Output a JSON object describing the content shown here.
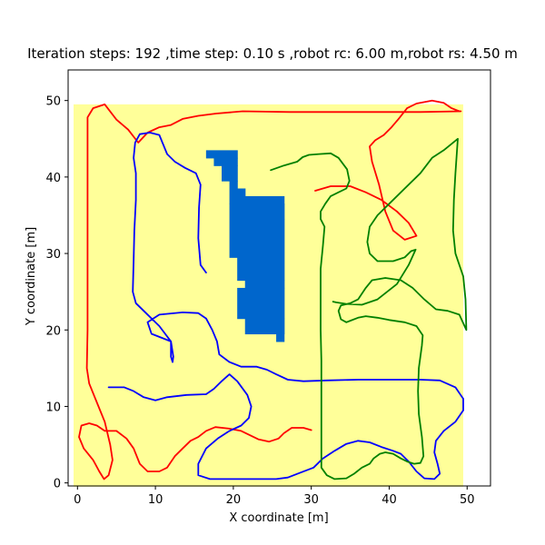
{
  "chart_data": {
    "type": "line",
    "title": "Iteration steps: 192 ,time step: 0.10 s ,robot rc: 6.00 m,robot rs: 4.50 m",
    "xlabel": "X coordinate [m]",
    "ylabel": "Y coordinate [m]",
    "xlim": [
      -1.2,
      53.0
    ],
    "ylim": [
      -0.4,
      54.0
    ],
    "xticks": [
      0,
      10,
      20,
      30,
      40,
      50
    ],
    "yticks": [
      0,
      10,
      20,
      30,
      40,
      50
    ],
    "grid": false,
    "colors": {
      "background": "#FFFF99",
      "obstacle": "#0066CC",
      "red": "#FF0000",
      "blue": "#0000FF",
      "green": "#008000"
    },
    "region": {
      "x": [
        -0.5,
        49.5
      ],
      "y": [
        -0.5,
        49.5
      ]
    },
    "obstacle_cells": [
      [
        16.5,
        42.5,
        4,
        1
      ],
      [
        17.5,
        41.5,
        3,
        1
      ],
      [
        18.5,
        39.5,
        2,
        2
      ],
      [
        19.5,
        36.5,
        1,
        3
      ],
      [
        19.5,
        29.5,
        1,
        7
      ],
      [
        20.5,
        37.5,
        1,
        1
      ],
      [
        20.5,
        36.5,
        6,
        1
      ],
      [
        20.5,
        26.5,
        6,
        10
      ],
      [
        21.5,
        25.5,
        5,
        1
      ],
      [
        20.5,
        21.5,
        6,
        4
      ],
      [
        21.5,
        19.5,
        5,
        2
      ],
      [
        25.5,
        34.5,
        1,
        2
      ],
      [
        25.5,
        18.5,
        1,
        16
      ]
    ],
    "series": [
      {
        "color": "red",
        "points": [
          [
            49.2,
            48.6
          ],
          [
            44,
            48.5
          ],
          [
            40.5,
            48.5
          ],
          [
            33.8,
            48.5
          ],
          [
            27.2,
            48.5
          ],
          [
            21.2,
            48.6
          ],
          [
            17.8,
            48.3
          ],
          [
            15.5,
            48
          ],
          [
            13.5,
            47.6
          ],
          [
            12,
            46.8
          ],
          [
            10.5,
            46.5
          ],
          [
            9,
            45.8
          ],
          [
            7.8,
            44.5
          ],
          [
            6.5,
            46.2
          ],
          [
            5,
            47.5
          ],
          [
            3.5,
            49.5
          ],
          [
            2,
            49
          ],
          [
            1.3,
            47.8
          ],
          [
            1.3,
            40
          ],
          [
            1.3,
            30
          ],
          [
            1.3,
            20
          ],
          [
            1.2,
            15
          ],
          [
            1.5,
            13
          ],
          [
            2.3,
            11
          ],
          [
            3.5,
            8
          ],
          [
            4.2,
            5
          ],
          [
            4.5,
            3
          ],
          [
            4,
            1
          ],
          [
            3.4,
            0.5
          ],
          [
            2.8,
            1.5
          ],
          [
            2,
            3
          ],
          [
            0.8,
            4.5
          ],
          [
            0.2,
            6
          ],
          [
            0.5,
            7.5
          ],
          [
            1.5,
            7.8
          ],
          [
            2.5,
            7.5
          ],
          [
            3.5,
            6.8
          ],
          [
            5,
            6.8
          ],
          [
            6.3,
            5.8
          ],
          [
            7.2,
            4.5
          ],
          [
            8,
            2.5
          ],
          [
            9,
            1.5
          ],
          [
            10.5,
            1.5
          ],
          [
            11.5,
            2
          ],
          [
            12.5,
            3.5
          ],
          [
            13.5,
            4.5
          ],
          [
            14.5,
            5.5
          ],
          [
            15.5,
            6
          ],
          [
            16.5,
            6.8
          ],
          [
            17.7,
            7.3
          ],
          [
            19.5,
            7.1
          ],
          [
            21,
            6.8
          ],
          [
            22,
            6.3
          ],
          [
            23.2,
            5.7
          ],
          [
            24.6,
            5.4
          ],
          [
            25.8,
            5.8
          ],
          [
            26.5,
            6.5
          ],
          [
            27.5,
            7.2
          ],
          [
            29,
            7.2
          ],
          [
            30,
            6.9
          ]
        ]
      },
      {
        "color": "red",
        "points": [
          [
            30.5,
            38.2
          ],
          [
            32.5,
            38.8
          ],
          [
            35,
            38.8
          ],
          [
            37,
            38
          ],
          [
            39,
            37
          ],
          [
            41,
            35.5
          ],
          [
            42.5,
            34
          ],
          [
            43.5,
            32.3
          ],
          [
            42,
            31.8
          ],
          [
            40.5,
            33
          ],
          [
            39.5,
            35.5
          ],
          [
            38.7,
            39
          ],
          [
            37.8,
            42
          ],
          [
            37.5,
            44
          ],
          [
            38.2,
            44.8
          ],
          [
            39.3,
            45.5
          ],
          [
            40.3,
            46.5
          ],
          [
            41.2,
            47.6
          ],
          [
            42.3,
            49
          ],
          [
            43.5,
            49.6
          ],
          [
            45.5,
            50
          ],
          [
            47,
            49.7
          ],
          [
            48,
            49
          ],
          [
            49,
            48.6
          ]
        ]
      },
      {
        "color": "blue",
        "points": [
          [
            16.5,
            27.5
          ],
          [
            15.8,
            28.5
          ],
          [
            15.5,
            32
          ],
          [
            15.6,
            36
          ],
          [
            15.8,
            39
          ],
          [
            15.2,
            40.5
          ],
          [
            13.8,
            41.2
          ],
          [
            12.5,
            42
          ],
          [
            11.5,
            43
          ],
          [
            10.5,
            45.5
          ],
          [
            9.3,
            45.8
          ],
          [
            8,
            45.6
          ],
          [
            7.4,
            44.5
          ],
          [
            7.2,
            42.5
          ],
          [
            7.5,
            40.5
          ],
          [
            7.5,
            37
          ],
          [
            7.3,
            33
          ],
          [
            7.2,
            29
          ],
          [
            7.1,
            25
          ],
          [
            7.5,
            23.5
          ],
          [
            8.5,
            22.5
          ],
          [
            10.5,
            20.5
          ],
          [
            12,
            18.5
          ],
          [
            12,
            16.5
          ],
          [
            12.2,
            15.8
          ],
          [
            12.3,
            16.5
          ],
          [
            12,
            18.5
          ],
          [
            9.5,
            19.5
          ],
          [
            9,
            21
          ],
          [
            10.5,
            22
          ],
          [
            13.5,
            22.3
          ],
          [
            15.5,
            22.2
          ],
          [
            16.5,
            21.5
          ],
          [
            17.3,
            20
          ],
          [
            17.9,
            18.5
          ],
          [
            18.2,
            16.8
          ],
          [
            19.5,
            15.8
          ],
          [
            21,
            15.2
          ],
          [
            23,
            15.2
          ],
          [
            24.3,
            14.8
          ],
          [
            25.5,
            14.2
          ],
          [
            27,
            13.5
          ],
          [
            29,
            13.3
          ],
          [
            32,
            13.4
          ],
          [
            36,
            13.5
          ],
          [
            40,
            13.5
          ],
          [
            44,
            13.5
          ],
          [
            46.5,
            13.4
          ],
          [
            48.5,
            12.5
          ],
          [
            49.5,
            11
          ],
          [
            49.5,
            9.5
          ],
          [
            48.5,
            8
          ],
          [
            47,
            6.8
          ],
          [
            46,
            5.5
          ],
          [
            45.8,
            4
          ],
          [
            46.2,
            2.5
          ],
          [
            46.5,
            1.2
          ],
          [
            45.8,
            0.5
          ],
          [
            44.5,
            0.6
          ],
          [
            43.5,
            1.5
          ],
          [
            42.5,
            2.8
          ],
          [
            41.5,
            3.8
          ],
          [
            40.5,
            4.2
          ],
          [
            39,
            4.7
          ],
          [
            37.5,
            5.3
          ],
          [
            36,
            5.5
          ],
          [
            34.5,
            5.1
          ],
          [
            33,
            4.2
          ],
          [
            31.5,
            3.2
          ],
          [
            30.3,
            2
          ],
          [
            28.5,
            1.3
          ],
          [
            27,
            0.7
          ],
          [
            25.5,
            0.5
          ],
          [
            23,
            0.5
          ],
          [
            20,
            0.5
          ],
          [
            17,
            0.5
          ],
          [
            15.5,
            1
          ],
          [
            15.5,
            2.5
          ],
          [
            16.5,
            4.5
          ],
          [
            18,
            5.8
          ],
          [
            19.5,
            6.8
          ],
          [
            21,
            7.5
          ],
          [
            22,
            8.5
          ],
          [
            22.3,
            10
          ],
          [
            21.8,
            11.5
          ],
          [
            20.5,
            13.3
          ],
          [
            19.5,
            14.2
          ],
          [
            18.5,
            13.3
          ],
          [
            17.5,
            12.3
          ],
          [
            16.5,
            11.6
          ],
          [
            14,
            11.5
          ],
          [
            11.5,
            11.2
          ],
          [
            10,
            10.8
          ],
          [
            8.5,
            11.2
          ],
          [
            7.2,
            12
          ],
          [
            6,
            12.5
          ],
          [
            4,
            12.5
          ]
        ]
      },
      {
        "color": "green",
        "points": [
          [
            24.8,
            40.9
          ],
          [
            26.5,
            41.5
          ],
          [
            27.5,
            41.8
          ],
          [
            28.2,
            42
          ],
          [
            28.9,
            42.6
          ],
          [
            29.7,
            42.9
          ],
          [
            31,
            43
          ],
          [
            32.5,
            43.1
          ],
          [
            33.5,
            42.5
          ],
          [
            34.6,
            41
          ],
          [
            34.9,
            39.5
          ],
          [
            34.5,
            38.5
          ],
          [
            33.5,
            38
          ],
          [
            32.5,
            37.5
          ],
          [
            31.8,
            36.5
          ],
          [
            31.2,
            35.5
          ],
          [
            31.2,
            34.5
          ],
          [
            31.7,
            33.5
          ],
          [
            31.5,
            31
          ],
          [
            31.2,
            28
          ],
          [
            31.2,
            24
          ],
          [
            31.2,
            20
          ],
          [
            31.3,
            16
          ],
          [
            31.3,
            12
          ],
          [
            31.3,
            8
          ],
          [
            31.3,
            4
          ],
          [
            31.3,
            2
          ],
          [
            32,
            1
          ],
          [
            33,
            0.5
          ],
          [
            34.5,
            0.6
          ],
          [
            35.5,
            1.2
          ],
          [
            36.5,
            2
          ],
          [
            37.5,
            2.5
          ],
          [
            38,
            3.2
          ],
          [
            38.8,
            3.8
          ],
          [
            39.5,
            4
          ],
          [
            40.5,
            3.8
          ],
          [
            41.5,
            3.2
          ],
          [
            42.3,
            2.8
          ],
          [
            43.2,
            2.5
          ],
          [
            44,
            2.6
          ],
          [
            44.4,
            3.5
          ],
          [
            44.2,
            6
          ],
          [
            43.8,
            9
          ],
          [
            43.7,
            12
          ],
          [
            43.8,
            15
          ],
          [
            44.2,
            18
          ],
          [
            44.3,
            19.3
          ],
          [
            43.5,
            20.5
          ],
          [
            42,
            21
          ],
          [
            40,
            21.3
          ],
          [
            38.5,
            21.6
          ],
          [
            37,
            21.8
          ],
          [
            36,
            21.6
          ],
          [
            35,
            21.2
          ],
          [
            34.5,
            21
          ],
          [
            33.8,
            21.4
          ],
          [
            33.5,
            22.5
          ],
          [
            33.8,
            23.2
          ],
          [
            35,
            23.5
          ],
          [
            36,
            24
          ],
          [
            37,
            25.5
          ],
          [
            37.8,
            26.5
          ],
          [
            39.5,
            26.8
          ],
          [
            41.5,
            26.5
          ],
          [
            43,
            25.5
          ],
          [
            44.5,
            24
          ],
          [
            46,
            22.7
          ],
          [
            47.5,
            22.5
          ],
          [
            49,
            22
          ],
          [
            49.9,
            20
          ],
          [
            49.8,
            24
          ],
          [
            49.5,
            27
          ],
          [
            48.5,
            30
          ],
          [
            48.2,
            33
          ],
          [
            48.3,
            37
          ],
          [
            48.5,
            40.5
          ],
          [
            48.8,
            45
          ],
          [
            47,
            43.5
          ],
          [
            45.5,
            42.5
          ],
          [
            44,
            40.5
          ],
          [
            42,
            38.5
          ],
          [
            40,
            36.5
          ],
          [
            38.5,
            35
          ],
          [
            37.5,
            33.5
          ],
          [
            37.2,
            31.5
          ],
          [
            37.5,
            30
          ],
          [
            38.5,
            29
          ],
          [
            40.5,
            29
          ],
          [
            42,
            29.5
          ],
          [
            42.8,
            30.3
          ],
          [
            43.4,
            30.5
          ],
          [
            42.5,
            28.5
          ],
          [
            41,
            26
          ],
          [
            38.5,
            24
          ],
          [
            36.5,
            23.3
          ],
          [
            34.5,
            23.4
          ],
          [
            33.2,
            23.6
          ],
          [
            32.8,
            23.7
          ]
        ]
      }
    ]
  }
}
